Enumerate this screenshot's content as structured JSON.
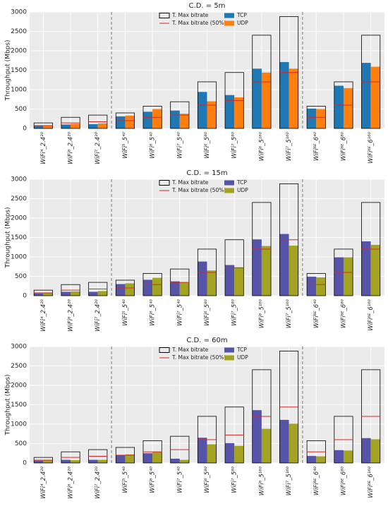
{
  "chart_data": [
    {
      "type": "bar",
      "title": "C.D. = 5m",
      "y_label": "Throughput (Mbps)",
      "categories": [
        "WiFi⁴_2.4²⁰",
        "WiFi⁶_2.4²⁰",
        "WiFi⁷_2.4²⁰",
        "WiFi⁵_5⁴⁰",
        "WiFi⁶_5⁴⁰",
        "WiFi⁷_5⁴⁰",
        "WiFi⁶_5⁸⁰",
        "WiFi⁷_5⁸⁰",
        "WiFi⁶_5¹⁶⁰",
        "WiFi⁷_5¹⁶⁰",
        "WiFi⁶ᴱ_6⁴⁰",
        "WiFi⁶ᴱ_6⁸⁰",
        "WiFi⁶ᴱ_6¹⁶⁰"
      ],
      "series": [
        {
          "name": "T. Max bitrate",
          "color": "#000000",
          "values": [
            143,
            287,
            344,
            400,
            574,
            688,
            1201,
            1441,
            2402,
            2882,
            574,
            1201,
            2402
          ]
        },
        {
          "name": "T. Max bitrate (50%)",
          "color": "#d62728",
          "values": [
            72,
            143,
            172,
            200,
            287,
            344,
            600,
            720,
            1201,
            1441,
            287,
            600,
            1201
          ]
        },
        {
          "name": "TCP",
          "color": "#1f77b4",
          "values": [
            70,
            100,
            110,
            310,
            430,
            460,
            940,
            860,
            1540,
            1710,
            510,
            1100,
            1690
          ]
        },
        {
          "name": "UDP",
          "color": "#ff7f0e",
          "values": [
            80,
            120,
            130,
            330,
            500,
            380,
            700,
            800,
            1440,
            1540,
            500,
            1040,
            1590
          ]
        }
      ],
      "ylim": [
        0,
        3000
      ],
      "yticks": [
        0,
        500,
        1000,
        1500,
        2000,
        2500,
        3000
      ],
      "grid": true
    },
    {
      "type": "bar",
      "title": "C.D. = 15m",
      "y_label": "Throughput (Mbps)",
      "categories": [
        "WiFi⁴_2.4²⁰",
        "WiFi⁶_2.4²⁰",
        "WiFi⁷_2.4²⁰",
        "WiFi⁵_5⁴⁰",
        "WiFi⁶_5⁴⁰",
        "WiFi⁷_5⁴⁰",
        "WiFi⁶_5⁸⁰",
        "WiFi⁷_5⁸⁰",
        "WiFi⁶_5¹⁶⁰",
        "WiFi⁷_5¹⁶⁰",
        "WiFi⁶ᴱ_6⁴⁰",
        "WiFi⁶ᴱ_6⁸⁰",
        "WiFi⁶ᴱ_6¹⁶⁰"
      ],
      "series": [
        {
          "name": "T. Max bitrate",
          "color": "#000000",
          "values": [
            143,
            287,
            344,
            400,
            574,
            688,
            1201,
            1441,
            2402,
            2882,
            574,
            1201,
            2402
          ]
        },
        {
          "name": "T. Max bitrate (50%)",
          "color": "#d62728",
          "values": [
            72,
            143,
            172,
            200,
            287,
            344,
            600,
            720,
            1201,
            1441,
            287,
            600,
            1201
          ]
        },
        {
          "name": "TCP",
          "color": "#5654a8",
          "values": [
            60,
            100,
            100,
            300,
            410,
            370,
            880,
            790,
            1450,
            1590,
            490,
            990,
            1400
          ]
        },
        {
          "name": "UDP",
          "color": "#a3a321",
          "values": [
            70,
            110,
            120,
            320,
            460,
            340,
            650,
            730,
            1280,
            1290,
            470,
            990,
            1310
          ]
        }
      ],
      "ylim": [
        0,
        3000
      ],
      "yticks": [
        0,
        500,
        1000,
        1500,
        2000,
        2500,
        3000
      ],
      "grid": true
    },
    {
      "type": "bar",
      "title": "C.D. = 60m",
      "y_label": "Throughput (Mbps)",
      "categories": [
        "WiFi⁴_2.4²⁰",
        "WiFi⁶_2.4²⁰",
        "WiFi⁷_2.4²⁰",
        "WiFi⁵_5⁴⁰",
        "WiFi⁶_5⁴⁰",
        "WiFi⁷_5⁴⁰",
        "WiFi⁶_5⁸⁰",
        "WiFi⁷_5⁸⁰",
        "WiFi⁶_5¹⁶⁰",
        "WiFi⁷_5¹⁶⁰",
        "WiFi⁶ᴱ_6⁴⁰",
        "WiFi⁶ᴱ_6⁸⁰",
        "WiFi⁶ᴱ_6¹⁶⁰"
      ],
      "series": [
        {
          "name": "T. Max bitrate",
          "color": "#000000",
          "values": [
            143,
            287,
            344,
            400,
            574,
            688,
            1201,
            1441,
            2402,
            2882,
            574,
            1201,
            2402
          ]
        },
        {
          "name": "T. Max bitrate (50%)",
          "color": "#d62728",
          "values": [
            72,
            143,
            172,
            200,
            287,
            344,
            600,
            720,
            1201,
            1441,
            287,
            600,
            1201
          ]
        },
        {
          "name": "TCP",
          "color": "#5654a8",
          "values": [
            60,
            80,
            80,
            200,
            250,
            110,
            650,
            510,
            1360,
            1110,
            180,
            330,
            640
          ]
        },
        {
          "name": "UDP",
          "color": "#a3a321",
          "values": [
            70,
            70,
            80,
            220,
            290,
            80,
            480,
            440,
            880,
            1010,
            170,
            320,
            610
          ]
        }
      ],
      "ylim": [
        0,
        3000
      ],
      "yticks": [
        0,
        500,
        1000,
        1500,
        2000,
        2500,
        3000
      ],
      "grid": true
    }
  ]
}
